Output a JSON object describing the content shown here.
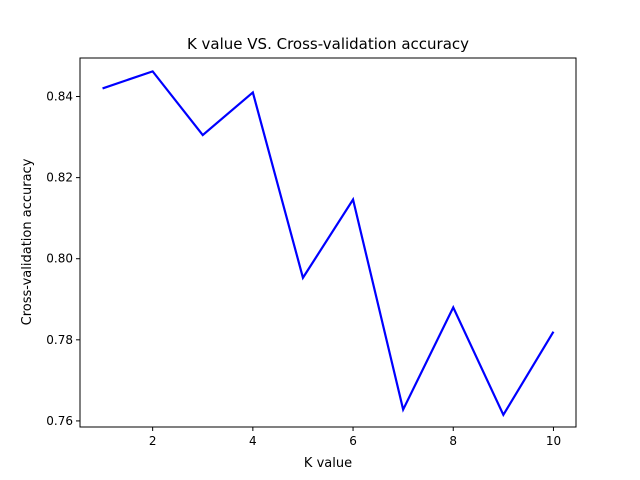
{
  "chart_data": {
    "type": "line",
    "title": "K value VS. Cross-validation accuracy",
    "xlabel": "K value",
    "ylabel": "Cross-validation accuracy",
    "xlim": [
      0.55,
      10.45
    ],
    "ylim": [
      0.7585,
      0.8495
    ],
    "xticks": [
      2,
      4,
      6,
      8,
      10
    ],
    "xtick_labels": [
      "2",
      "4",
      "6",
      "8",
      "10"
    ],
    "yticks": [
      0.76,
      0.78,
      0.8,
      0.82,
      0.84
    ],
    "ytick_labels": [
      "0.76",
      "0.78",
      "0.80",
      "0.82",
      "0.84"
    ],
    "grid": false,
    "series": [
      {
        "color": "#0000ff",
        "x": [
          1,
          2,
          3,
          4,
          5,
          6,
          7,
          8,
          9,
          10
        ],
        "y": [
          0.842,
          0.8462,
          0.8305,
          0.841,
          0.7953,
          0.8146,
          0.7628,
          0.788,
          0.7615,
          0.782
        ]
      }
    ]
  }
}
